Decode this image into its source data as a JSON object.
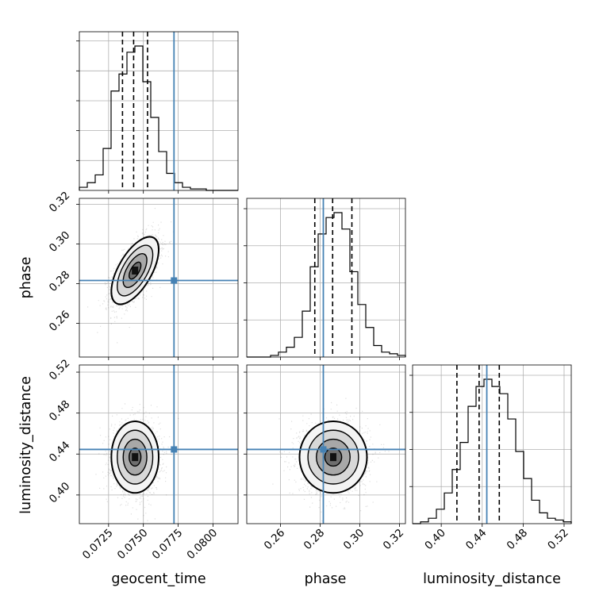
{
  "chart_data": {
    "type": "corner",
    "parameters": [
      "geocent_time",
      "phase",
      "luminosity_distance"
    ],
    "ranges": {
      "geocent_time": [
        0.0704,
        0.0818
      ],
      "phase": [
        0.243,
        0.323
      ],
      "luminosity_distance": [
        0.372,
        0.527
      ]
    },
    "ticks": {
      "geocent_time": [
        0.0725,
        0.075,
        0.0775,
        0.08
      ],
      "phase": [
        0.26,
        0.28,
        0.3,
        0.32
      ],
      "luminosity_distance": [
        0.4,
        0.44,
        0.48,
        0.52
      ]
    },
    "tick_labels": {
      "geocent_time": [
        "0.0725",
        "0.0750",
        "0.0775",
        "0.0800"
      ],
      "phase": [
        "0.26",
        "0.28",
        "0.30",
        "0.32"
      ],
      "luminosity_distance": [
        "0.40",
        "0.44",
        "0.48",
        "0.52"
      ]
    },
    "truths": {
      "geocent_time": 0.0772,
      "phase": 0.2816,
      "luminosity_distance": 0.4445
    },
    "quantiles": {
      "geocent_time": [
        0.0735,
        0.0743,
        0.0753
      ],
      "phase": [
        0.2773,
        0.2863,
        0.296
      ],
      "luminosity_distance": [
        0.4153,
        0.437,
        0.4567
      ]
    },
    "histograms": {
      "geocent_time": {
        "edges_start": 0.0704,
        "bin_width": 0.00057,
        "counts": [
          2,
          5,
          10,
          27,
          64,
          75,
          89,
          93,
          70,
          47,
          25,
          11,
          5,
          2,
          1,
          1,
          0,
          0,
          0,
          0
        ]
      },
      "phase": {
        "edges_start": 0.243,
        "bin_width": 0.004,
        "counts": [
          0,
          0,
          0,
          1,
          3,
          6,
          12,
          28,
          55,
          75,
          85,
          88,
          78,
          52,
          32,
          18,
          7,
          3,
          2,
          1
        ]
      },
      "luminosity_distance": {
        "edges_start": 0.372,
        "bin_width": 0.00775,
        "counts": [
          0,
          1,
          3,
          8,
          17,
          30,
          45,
          65,
          76,
          80,
          76,
          72,
          58,
          40,
          25,
          13,
          6,
          3,
          2,
          1
        ]
      }
    },
    "posterior": {
      "geocent_time": {
        "mean": 0.0744,
        "sd": 0.00085
      },
      "phase": {
        "mean": 0.2866,
        "sd": 0.0085
      },
      "luminosity_distance": {
        "mean": 0.437,
        "sd": 0.0175
      },
      "correlations": {
        "geocent_time|phase": 0.62,
        "geocent_time|luminosity_distance": 0.0,
        "phase|luminosity_distance": 0.0
      }
    },
    "contour_levels_sigma": [
      0.5,
      1.0,
      1.5,
      2.0
    ],
    "grid": true,
    "colors": {
      "truth": "#4682b4",
      "hist": "#000000",
      "quantile": "#000000",
      "points": "#000000",
      "grid": "#b0b0b0"
    }
  }
}
